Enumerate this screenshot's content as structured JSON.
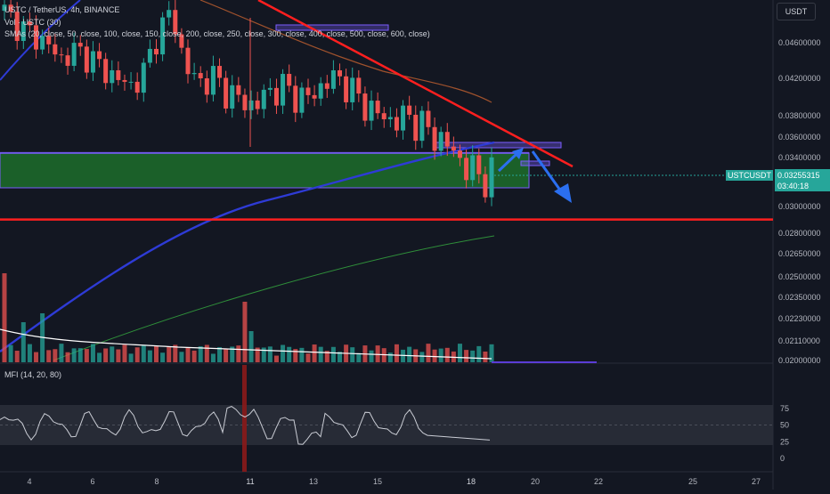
{
  "header": {
    "symbol_line": "USTC / TetherUS, 4h, BINANCE",
    "volume_line": "Vol · USTC (30)",
    "sma_line": "SMAs (20, close, 50, close, 100, close, 150, close, 200, close, 250, close, 300, close, 400, close, 500, close, 600, close)"
  },
  "currency_selector": "USDT",
  "price_tag": {
    "pair": "USTCUSDT",
    "last_price": "0.03255315",
    "countdown": "03:40:18"
  },
  "mfi": {
    "label": "MFI (14, 20, 80)",
    "ticks": [
      "75",
      "50",
      "25",
      "0"
    ]
  },
  "colors": {
    "background": "#131722",
    "up": "#26a69a",
    "down": "#ef5350",
    "trendline": "#ff1f1f",
    "sma_blue": "#2e3bd6",
    "sma_green": "#2f8f3a",
    "sma_brown": "#a0522d",
    "arrow": "#2b6ff0",
    "mfi_line": "#c9ccd4",
    "support_zone": "#1f7a2c",
    "zone_border": "#7b5cff"
  },
  "chart_data": {
    "type": "candlestick",
    "price_axis": {
      "ticks": [
        "0.04600000",
        "0.04200000",
        "0.03800000",
        "0.03600000",
        "0.03400000",
        "0.03000000",
        "0.02800000",
        "0.02650000",
        "0.02500000",
        "0.02350000",
        "0.02230000",
        "0.02110000",
        "0.02000000"
      ],
      "scale": "log"
    },
    "x_axis": {
      "labels": [
        "4",
        "6",
        "8",
        "11",
        "13",
        "15",
        "18",
        "20",
        "22",
        "25",
        "27"
      ]
    },
    "last_price": 0.03255315,
    "candles_close_trend": [
      0.05,
      0.048,
      0.047,
      0.046,
      0.044,
      0.045,
      0.0445,
      0.043,
      0.042,
      0.041,
      0.0425,
      0.047,
      0.05,
      0.043,
      0.0415,
      0.042,
      0.0405,
      0.0395,
      0.039,
      0.0405,
      0.041,
      0.04,
      0.0398,
      0.0415,
      0.042,
      0.0405,
      0.039,
      0.038,
      0.0375,
      0.038,
      0.037,
      0.036,
      0.035,
      0.0335,
      0.0325,
      0.0326
    ],
    "annotations": [
      {
        "type": "trendline",
        "from_price": 0.052,
        "to_price": 0.034
      },
      {
        "type": "horizontal_line",
        "price": 0.029
      },
      {
        "type": "support_zone",
        "low": 0.0315,
        "high": 0.0345
      },
      {
        "type": "resistance_zone",
        "low": 0.0352,
        "high": 0.0355
      }
    ],
    "mfi_band": {
      "upper": 80,
      "lower": 20
    }
  }
}
